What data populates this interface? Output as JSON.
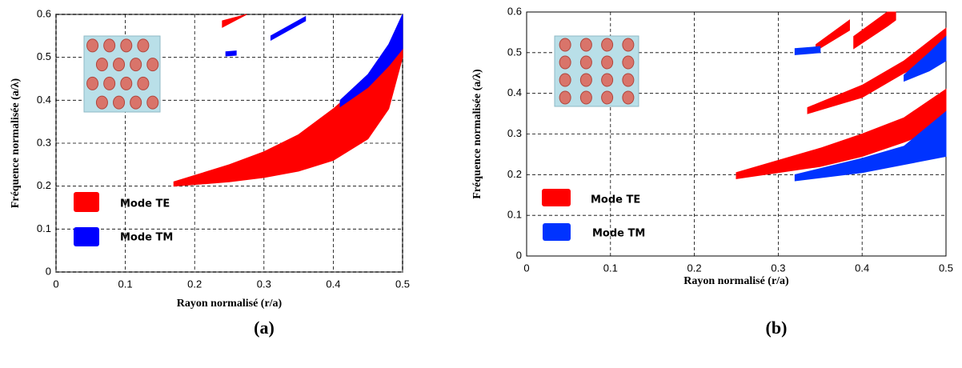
{
  "chart_data": [
    {
      "type": "gapmap",
      "label": "(a)",
      "xlabel": "Rayon normalisé (r/a)",
      "ylabel": "Fréquence normalisée (a/λ)",
      "xlim": [
        0,
        0.5
      ],
      "ylim": [
        0,
        0.6
      ],
      "xticks": [
        0,
        0.1,
        0.2,
        0.3,
        0.4,
        0.5
      ],
      "yticks": [
        0,
        0.1,
        0.2,
        0.3,
        0.4,
        0.5,
        0.6
      ],
      "grid": true,
      "series": [
        {
          "name": "Mode TE",
          "color": "#ff0000",
          "regions": [
            {
              "x": [
                0.17,
                0.25,
                0.3,
                0.35,
                0.4,
                0.45,
                0.48,
                0.5
              ],
              "low": [
                0.2,
                0.21,
                0.22,
                0.235,
                0.26,
                0.31,
                0.38,
                0.5
              ],
              "high": [
                0.21,
                0.25,
                0.28,
                0.32,
                0.38,
                0.45,
                0.5,
                0.52
              ]
            },
            {
              "x": [
                0.24,
                0.275
              ],
              "low": [
                0.57,
                0.6
              ],
              "high": [
                0.585,
                0.6
              ]
            }
          ]
        },
        {
          "name": "Mode TM",
          "color": "#0000ff",
          "regions": [
            {
              "x": [
                0.41,
                0.45,
                0.48,
                0.5
              ],
              "low": [
                0.385,
                0.43,
                0.48,
                0.52
              ],
              "high": [
                0.4,
                0.46,
                0.53,
                0.6
              ]
            },
            {
              "x": [
                0.245,
                0.26
              ],
              "low": [
                0.503,
                0.505
              ],
              "high": [
                0.513,
                0.515
              ]
            },
            {
              "x": [
                0.31,
                0.36
              ],
              "low": [
                0.54,
                0.585
              ],
              "high": [
                0.55,
                0.595
              ]
            }
          ]
        }
      ]
    },
    {
      "type": "gapmap",
      "label": "(b)",
      "xlabel": "Rayon normalisé  (r/a)",
      "ylabel": "Fréquence normalisée (a/λ)",
      "xlim": [
        0,
        0.5
      ],
      "ylim": [
        0,
        0.6
      ],
      "xticks": [
        0,
        0.1,
        0.2,
        0.3,
        0.4,
        0.5
      ],
      "yticks": [
        0,
        0.1,
        0.2,
        0.3,
        0.4,
        0.5,
        0.6
      ],
      "grid": true,
      "series": [
        {
          "name": "Mode TE",
          "color": "#ff0000",
          "regions": [
            {
              "x": [
                0.25,
                0.3,
                0.35,
                0.4,
                0.45,
                0.5
              ],
              "low": [
                0.19,
                0.205,
                0.22,
                0.245,
                0.28,
                0.32
              ],
              "high": [
                0.205,
                0.235,
                0.265,
                0.3,
                0.34,
                0.41
              ]
            },
            {
              "x": [
                0.335,
                0.4,
                0.45,
                0.5
              ],
              "low": [
                0.35,
                0.39,
                0.45,
                0.5
              ],
              "high": [
                0.365,
                0.42,
                0.48,
                0.56
              ]
            },
            {
              "x": [
                0.345,
                0.385
              ],
              "low": [
                0.505,
                0.555
              ],
              "high": [
                0.52,
                0.58
              ]
            },
            {
              "x": [
                0.39,
                0.43,
                0.44
              ],
              "low": [
                0.51,
                0.565,
                0.58
              ],
              "high": [
                0.54,
                0.6,
                0.6
              ]
            }
          ]
        },
        {
          "name": "Mode TM",
          "color": "#0033ff",
          "regions": [
            {
              "x": [
                0.32,
                0.4,
                0.45,
                0.5
              ],
              "low": [
                0.185,
                0.205,
                0.225,
                0.245
              ],
              "high": [
                0.2,
                0.24,
                0.27,
                0.355
              ]
            },
            {
              "x": [
                0.45,
                0.48,
                0.5
              ],
              "low": [
                0.43,
                0.455,
                0.48
              ],
              "high": [
                0.445,
                0.5,
                0.54
              ]
            },
            {
              "x": [
                0.32,
                0.35
              ],
              "low": [
                0.495,
                0.5
              ],
              "high": [
                0.51,
                0.515
              ]
            }
          ]
        }
      ]
    }
  ]
}
